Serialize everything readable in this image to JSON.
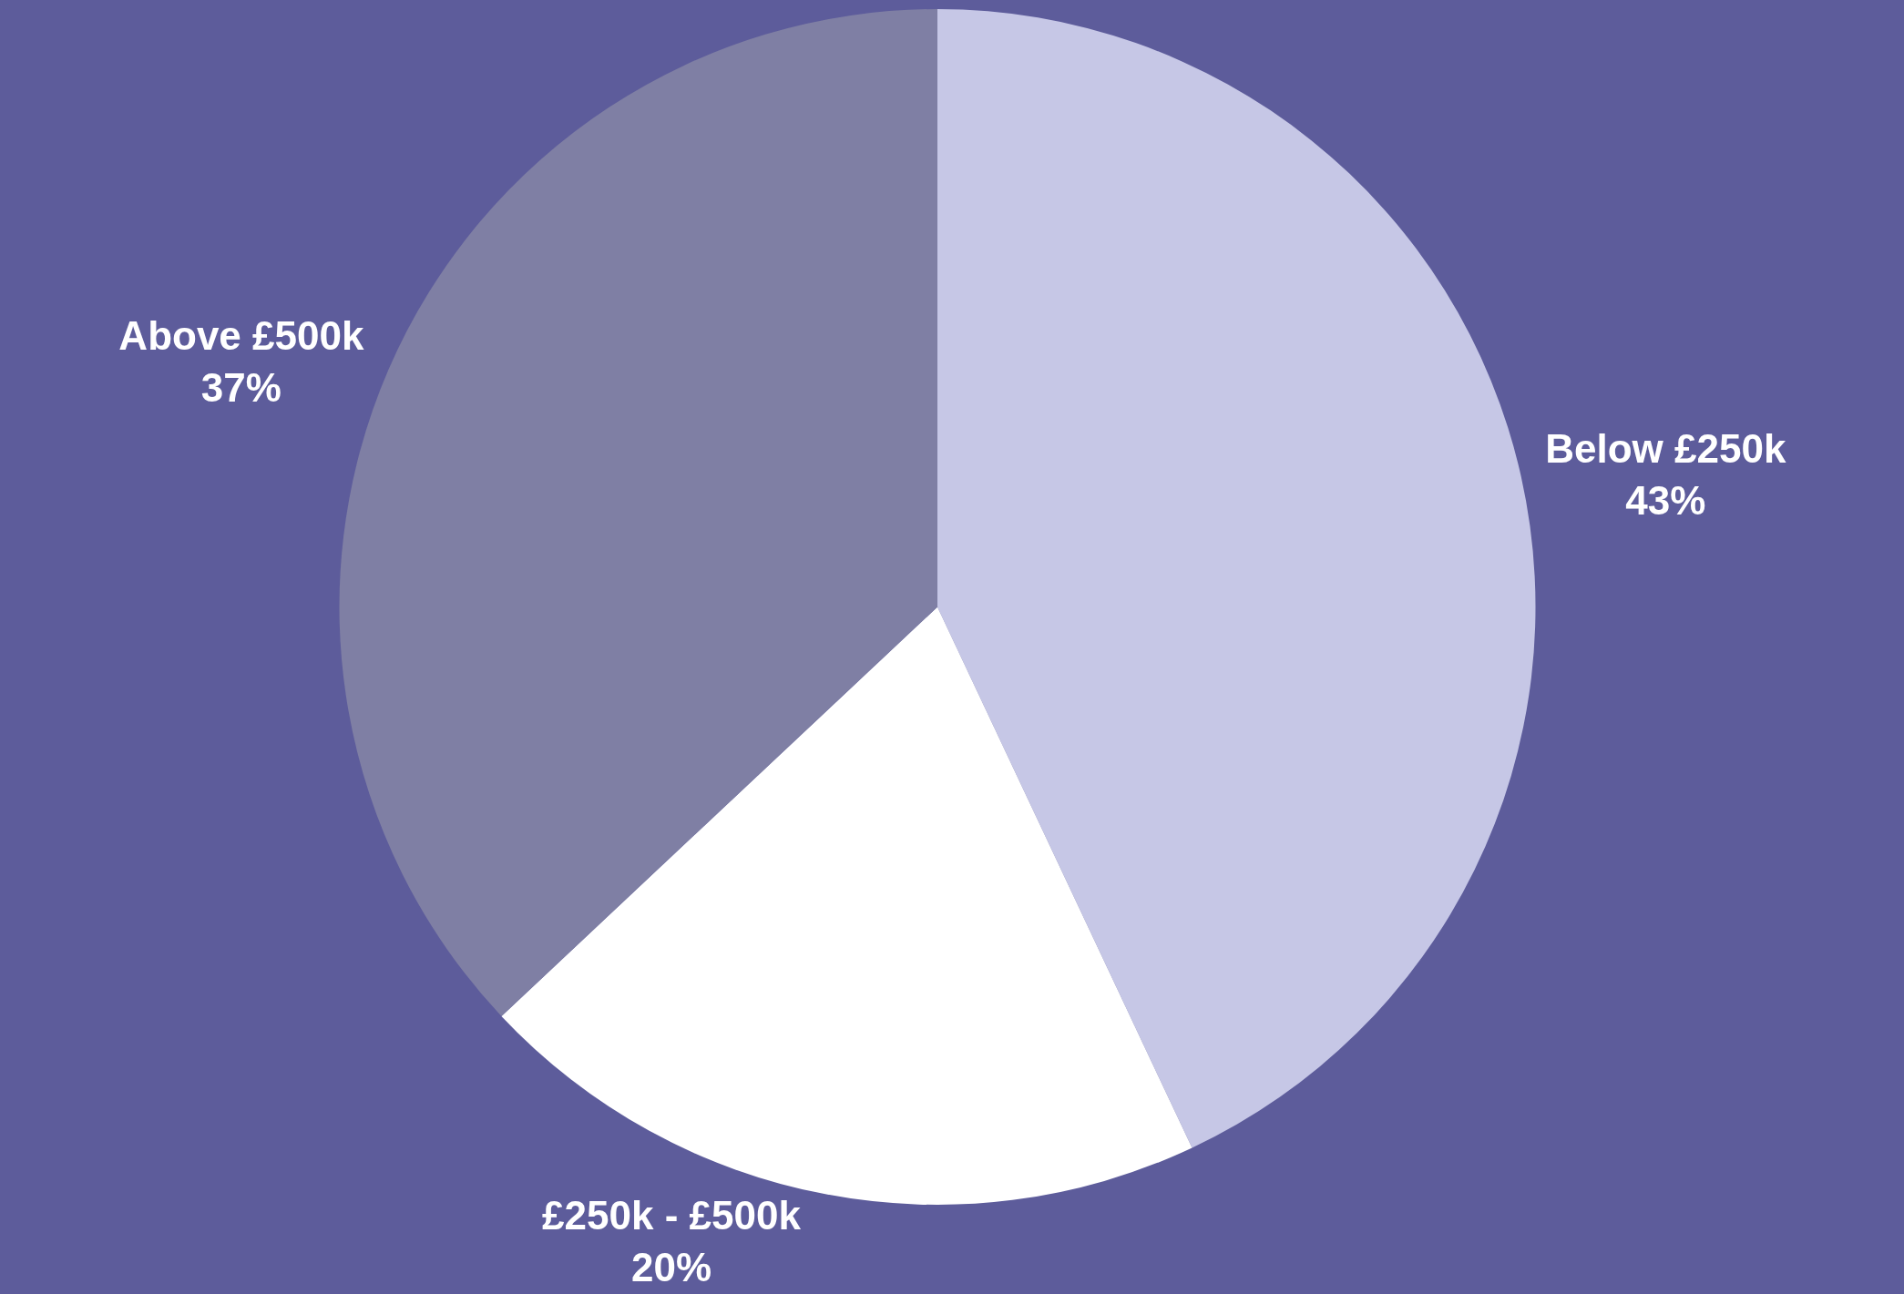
{
  "chart_data": {
    "type": "pie",
    "categories": [
      "Below £250k",
      "£250k - £500k",
      "Above £500k"
    ],
    "values": [
      43,
      20,
      37
    ],
    "value_labels": [
      "43%",
      "20%",
      "37%"
    ],
    "colors": [
      "#c6c7e6",
      "#ffffff",
      "#7f7fa4"
    ],
    "legend": false
  }
}
